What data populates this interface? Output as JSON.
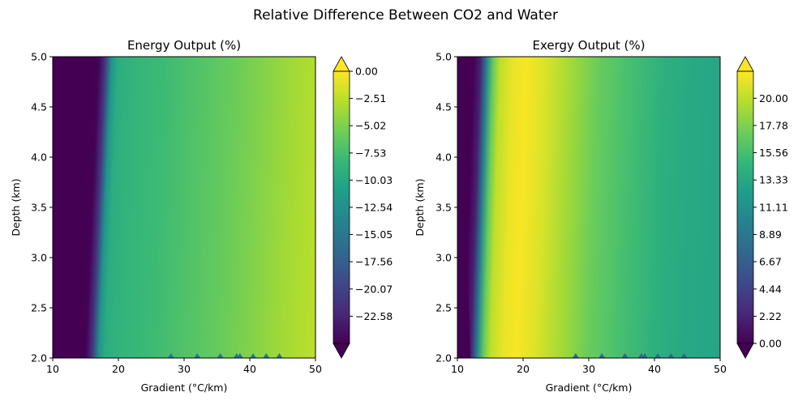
{
  "suptitle": "Relative Difference Between CO2 and Water",
  "colors": {
    "viridis": [
      "#440154",
      "#482878",
      "#3e4989",
      "#31688e",
      "#26828e",
      "#1f9e89",
      "#35b779",
      "#6ece58",
      "#b5de2b",
      "#fde725"
    ]
  },
  "chart_data": [
    {
      "type": "heatmap",
      "title": "Energy Output (%)",
      "xlabel": "Gradient (°C/km)",
      "ylabel": "Depth (km)",
      "xlim": [
        10,
        50
      ],
      "ylim": [
        2.0,
        5.0
      ],
      "xticks": [
        "10",
        "20",
        "30",
        "40",
        "50"
      ],
      "yticks": [
        "2.0",
        "2.5",
        "3.0",
        "3.5",
        "4.0",
        "4.5",
        "5.0"
      ],
      "colorbar": {
        "min": -25.09,
        "max": 0.0,
        "extend": "both",
        "ticks": [
          "0.00",
          "−2.51",
          "−5.02",
          "−7.53",
          "−10.03",
          "−12.54",
          "−15.05",
          "−17.56",
          "−20.07",
          "−22.58"
        ],
        "tick_values": [
          0.0,
          -2.51,
          -5.02,
          -7.53,
          -10.03,
          -12.54,
          -15.05,
          -17.56,
          -20.07,
          -22.58
        ]
      },
      "profile": {
        "gradient": [
          10,
          13,
          14,
          15,
          16,
          17,
          18,
          20,
          25,
          30,
          35,
          40,
          45,
          50
        ],
        "value_at_depth_2km": [
          -25.1,
          -25.1,
          -25.1,
          -25.0,
          -21,
          -12,
          -9.5,
          -8.8,
          -8.0,
          -7.0,
          -6.0,
          -4.8,
          -3.5,
          -2.5
        ],
        "edge_gradient_at_depth_2km": 15.5,
        "edge_gradient_at_depth_5km": 13.5
      }
    },
    {
      "type": "heatmap",
      "title": "Exergy Output (%)",
      "xlabel": "Gradient (°C/km)",
      "ylabel": "Depth (km)",
      "xlim": [
        10,
        50
      ],
      "ylim": [
        2.0,
        5.0
      ],
      "xticks": [
        "10",
        "20",
        "30",
        "40",
        "50"
      ],
      "yticks": [
        "2.0",
        "2.5",
        "3.0",
        "3.5",
        "4.0",
        "4.5",
        "5.0"
      ],
      "colorbar": {
        "min": 0.0,
        "max": 22.2,
        "extend": "both",
        "ticks": [
          "20.00",
          "17.78",
          "15.56",
          "13.33",
          "11.11",
          "8.89",
          "6.67",
          "4.44",
          "2.22",
          "0.00"
        ],
        "tick_values": [
          20.0,
          17.78,
          15.56,
          13.33,
          11.11,
          8.89,
          6.67,
          4.44,
          2.22,
          0.0
        ]
      },
      "profile": {
        "gradient": [
          10,
          11,
          12,
          13,
          14,
          15,
          17,
          19,
          22,
          26,
          30,
          35,
          40,
          45,
          50
        ],
        "value_at_depth_2km": [
          0,
          0,
          2,
          10,
          17,
          20,
          21.5,
          22,
          21,
          19,
          17,
          15.5,
          14,
          13.3,
          13.0
        ],
        "edge_gradient_at_depth_2km": 12.5,
        "edge_gradient_at_depth_5km": 11.0
      }
    }
  ]
}
